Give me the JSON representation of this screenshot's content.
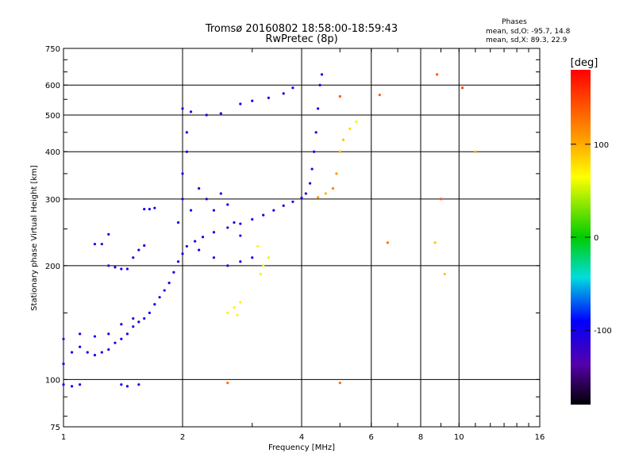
{
  "chart_data": {
    "type": "scatter",
    "title": "Tromsø 20160802 18:58:00-18:59:43",
    "subtitle": "RwPretec (8p)",
    "xlabel": "Frequency [MHz]",
    "ylabel": "Stationary phase Virtual Height [km]",
    "x_scale": "log",
    "y_scale": "log",
    "xlim": [
      1,
      16
    ],
    "ylim": [
      75,
      750
    ],
    "x_ticks": [
      1,
      2,
      4,
      6,
      8,
      10,
      16
    ],
    "y_ticks": [
      75,
      100,
      200,
      300,
      400,
      500,
      600,
      750
    ],
    "grid": true,
    "stats": {
      "heading": "Phases",
      "line_o": "mean, sd,O: -95.7, 14.8",
      "line_x": "mean, sd,X:  89.3, 22.9"
    },
    "colorbar": {
      "label": "[deg]",
      "range": [
        -180,
        180
      ],
      "ticks": [
        100,
        0,
        -100
      ],
      "colormap": "rainbow (black-purple-blue-cyan-green-yellow-red)"
    },
    "series": [
      {
        "values": [
          [
            1.0,
            110,
            -100
          ],
          [
            1.05,
            118,
            -100
          ],
          [
            1.1,
            122,
            -100
          ],
          [
            1.15,
            118,
            -100
          ],
          [
            1.2,
            116,
            -100
          ],
          [
            1.25,
            118,
            -100
          ],
          [
            1.3,
            120,
            -100
          ],
          [
            1.35,
            125,
            -100
          ],
          [
            1.4,
            128,
            -100
          ],
          [
            1.45,
            132,
            -100
          ],
          [
            1.5,
            138,
            -100
          ],
          [
            1.55,
            142,
            -100
          ],
          [
            1.6,
            145,
            -100
          ],
          [
            1.65,
            150,
            -100
          ],
          [
            1.7,
            158,
            -100
          ],
          [
            1.75,
            165,
            -100
          ],
          [
            1.8,
            172,
            -100
          ],
          [
            1.85,
            180,
            -100
          ],
          [
            1.9,
            192,
            -100
          ],
          [
            1.95,
            205,
            -100
          ],
          [
            2.0,
            215,
            -100
          ],
          [
            2.05,
            225,
            -100
          ],
          [
            2.15,
            232,
            -100
          ],
          [
            2.25,
            238,
            -100
          ],
          [
            2.4,
            245,
            -100
          ],
          [
            2.6,
            252,
            -100
          ],
          [
            2.8,
            258,
            -100
          ],
          [
            3.0,
            265,
            -100
          ],
          [
            3.2,
            272,
            -100
          ],
          [
            3.4,
            280,
            -100
          ],
          [
            3.6,
            288,
            -100
          ],
          [
            3.8,
            295,
            -100
          ],
          [
            4.0,
            302,
            -100
          ],
          [
            4.1,
            310,
            -100
          ],
          [
            4.2,
            330,
            -100
          ],
          [
            4.25,
            360,
            -100
          ],
          [
            4.3,
            400,
            -100
          ],
          [
            4.35,
            450,
            -100
          ],
          [
            4.4,
            520,
            -100
          ],
          [
            4.45,
            600,
            -100
          ],
          [
            4.5,
            640,
            -100
          ],
          [
            1.0,
            128,
            -110
          ],
          [
            1.1,
            132,
            -105
          ],
          [
            1.2,
            130,
            -100
          ],
          [
            1.3,
            132,
            -100
          ],
          [
            1.4,
            140,
            -95
          ],
          [
            1.5,
            145,
            -100
          ],
          [
            1.3,
            200,
            -110
          ],
          [
            1.35,
            198,
            -105
          ],
          [
            1.4,
            196,
            -100
          ],
          [
            1.45,
            196,
            -100
          ],
          [
            1.5,
            210,
            -100
          ],
          [
            1.55,
            220,
            -100
          ],
          [
            1.6,
            226,
            -100
          ],
          [
            1.2,
            228,
            -100
          ],
          [
            1.25,
            228,
            -100
          ],
          [
            1.3,
            242,
            -100
          ],
          [
            1.6,
            282,
            -100
          ],
          [
            1.65,
            282,
            -100
          ],
          [
            1.7,
            284,
            -100
          ],
          [
            1.0,
            97,
            -100
          ],
          [
            1.05,
            96,
            -100
          ],
          [
            1.1,
            97,
            -100
          ],
          [
            1.4,
            97,
            -100
          ],
          [
            1.45,
            96,
            -100
          ],
          [
            1.55,
            97,
            -100
          ],
          [
            2.0,
            520,
            -100
          ],
          [
            2.1,
            510,
            -100
          ],
          [
            2.3,
            500,
            -100
          ],
          [
            2.5,
            505,
            -100
          ],
          [
            2.8,
            535,
            -100
          ],
          [
            3.0,
            545,
            -100
          ],
          [
            3.3,
            555,
            -100
          ],
          [
            3.6,
            570,
            -100
          ],
          [
            3.8,
            590,
            -100
          ],
          [
            2.0,
            300,
            -100
          ],
          [
            2.0,
            350,
            -100
          ],
          [
            2.05,
            400,
            -100
          ],
          [
            2.05,
            450,
            -100
          ],
          [
            1.95,
            260,
            -100
          ],
          [
            2.1,
            280,
            -100
          ],
          [
            2.2,
            320,
            -100
          ],
          [
            2.3,
            300,
            -100
          ],
          [
            2.4,
            280,
            -100
          ],
          [
            2.5,
            310,
            -100
          ],
          [
            2.6,
            290,
            -100
          ],
          [
            2.7,
            260,
            -100
          ],
          [
            2.8,
            240,
            -100
          ],
          [
            2.2,
            220,
            -100
          ],
          [
            2.4,
            210,
            -100
          ],
          [
            2.6,
            200,
            -100
          ],
          [
            2.8,
            205,
            -100
          ],
          [
            3.0,
            210,
            -100
          ],
          [
            2.6,
            150,
            70
          ],
          [
            2.7,
            155,
            70
          ],
          [
            2.8,
            160,
            70
          ],
          [
            2.75,
            148,
            70
          ],
          [
            3.2,
            200,
            60
          ],
          [
            3.3,
            210,
            60
          ],
          [
            3.1,
            225,
            70
          ],
          [
            3.15,
            190,
            70
          ],
          [
            4.4,
            303,
            110
          ],
          [
            4.6,
            310,
            100
          ],
          [
            4.8,
            320,
            120
          ],
          [
            4.9,
            350,
            110
          ],
          [
            5.0,
            400,
            100
          ],
          [
            5.1,
            430,
            90
          ],
          [
            5.3,
            460,
            80
          ],
          [
            5.5,
            480,
            60
          ],
          [
            5.0,
            560,
            140
          ],
          [
            6.3,
            565,
            140
          ],
          [
            8.8,
            640,
            140
          ],
          [
            9.0,
            300,
            140
          ],
          [
            10.2,
            590,
            150
          ],
          [
            11.0,
            400,
            100
          ],
          [
            8.7,
            230,
            90
          ],
          [
            9.2,
            190,
            90
          ],
          [
            6.6,
            230,
            130
          ],
          [
            5.0,
            98,
            130
          ],
          [
            2.6,
            98,
            130
          ]
        ]
      }
    ]
  },
  "colors": {
    "background": "#ffffff",
    "grid": "#000000"
  }
}
